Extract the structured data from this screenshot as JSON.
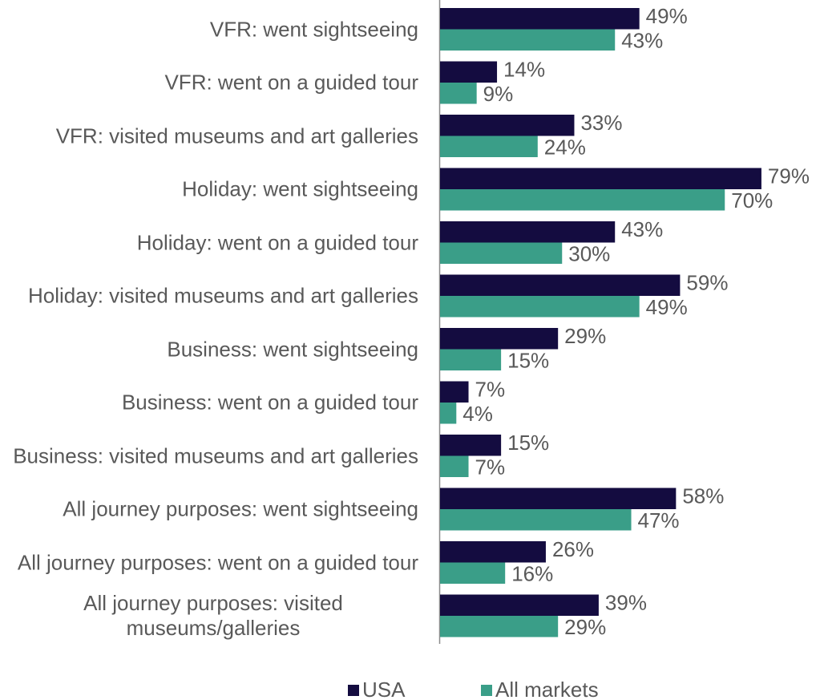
{
  "chart_data": {
    "type": "bar",
    "orientation": "horizontal",
    "categories": [
      "VFR: went sightseeing",
      "VFR: went on a guided tour",
      "VFR: visited museums and art galleries",
      "Holiday: went sightseeing",
      "Holiday: went on a guided tour",
      "Holiday: visited museums and art galleries",
      "Business: went sightseeing",
      "Business: went on a guided tour",
      "Business: visited museums and art galleries",
      "All journey purposes: went sightseeing",
      "All journey purposes: went on a guided tour",
      "All journey purposes: visited museums/galleries"
    ],
    "series": [
      {
        "name": "USA",
        "color": "#140c40",
        "values": [
          49,
          14,
          33,
          79,
          43,
          59,
          29,
          7,
          15,
          58,
          26,
          39
        ],
        "value_labels": [
          "49%",
          "14%",
          "33%",
          "79%",
          "43%",
          "59%",
          "29%",
          "7%",
          "15%",
          "58%",
          "26%",
          "39%"
        ]
      },
      {
        "name": "All markets",
        "color": "#3a9e88",
        "values": [
          43,
          9,
          24,
          70,
          30,
          49,
          15,
          4,
          7,
          47,
          16,
          29
        ],
        "value_labels": [
          "43%",
          "9%",
          "24%",
          "70%",
          "30%",
          "49%",
          "15%",
          "4%",
          "7%",
          "47%",
          "16%",
          "29%"
        ]
      }
    ],
    "xlim": [
      0,
      80
    ],
    "legend": "bottom"
  }
}
